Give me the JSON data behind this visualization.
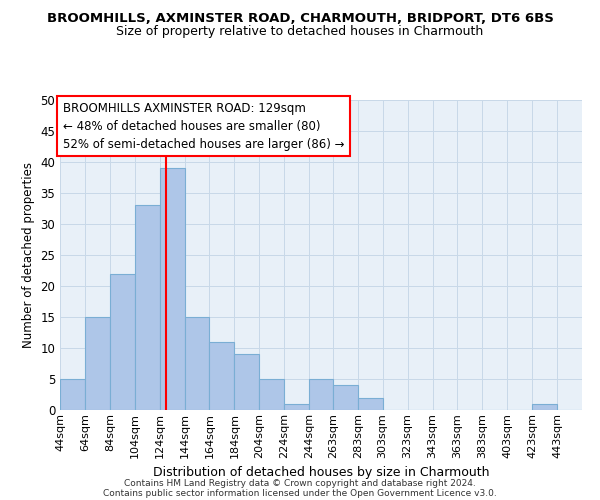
{
  "title": "BROOMHILLS, AXMINSTER ROAD, CHARMOUTH, BRIDPORT, DT6 6BS",
  "subtitle": "Size of property relative to detached houses in Charmouth",
  "xlabel": "Distribution of detached houses by size in Charmouth",
  "ylabel": "Number of detached properties",
  "bar_labels": [
    "44sqm",
    "64sqm",
    "84sqm",
    "104sqm",
    "124sqm",
    "144sqm",
    "164sqm",
    "184sqm",
    "204sqm",
    "224sqm",
    "244sqm",
    "263sqm",
    "283sqm",
    "303sqm",
    "323sqm",
    "343sqm",
    "363sqm",
    "383sqm",
    "403sqm",
    "423sqm",
    "443sqm"
  ],
  "bar_values": [
    5,
    15,
    22,
    33,
    39,
    15,
    11,
    9,
    5,
    1,
    5,
    4,
    2,
    0,
    0,
    0,
    0,
    0,
    0,
    1,
    0
  ],
  "bar_color": "#aec6e8",
  "bar_edge_color": "#7aaed4",
  "ref_line_x": 129,
  "ref_line_label": "BROOMHILLS AXMINSTER ROAD: 129sqm",
  "annotation_line2": "← 48% of detached houses are smaller (80)",
  "annotation_line3": "52% of semi-detached houses are larger (86) →",
  "annotation_box_color": "white",
  "annotation_box_edge": "red",
  "ref_line_color": "red",
  "ylim": [
    0,
    50
  ],
  "yticks": [
    0,
    5,
    10,
    15,
    20,
    25,
    30,
    35,
    40,
    45,
    50
  ],
  "grid_color": "#c8d8e8",
  "background_color": "#e8f0f8",
  "footer1": "Contains HM Land Registry data © Crown copyright and database right 2024.",
  "footer2": "Contains public sector information licensed under the Open Government Licence v3.0."
}
